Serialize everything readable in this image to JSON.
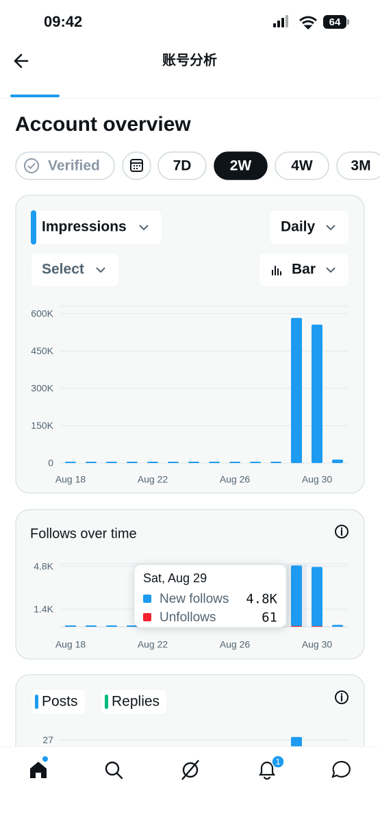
{
  "status_bar": {
    "time": "09:42",
    "battery": "64"
  },
  "header": {
    "title": "账号分析"
  },
  "section_title": "Account overview",
  "filters": {
    "verified": "Verified",
    "ranges": [
      "7D",
      "2W",
      "4W",
      "3M"
    ],
    "selected": "2W"
  },
  "controls": {
    "metric": "Impressions",
    "interval": "Daily",
    "compare": "Select",
    "chart_style": "Bar"
  },
  "chart_data": [
    {
      "type": "bar",
      "color": "#1d9bf0",
      "categories": [
        "Aug 18",
        null,
        null,
        null,
        "Aug 22",
        null,
        null,
        null,
        "Aug 26",
        null,
        null,
        null,
        "Aug 30",
        null
      ],
      "values": [
        0,
        0,
        0,
        0,
        0,
        0,
        0,
        0,
        0,
        0,
        0,
        583000,
        556000,
        14000
      ],
      "ylim": [
        0,
        630000
      ],
      "yticks": [
        0,
        {
          "value": 150000,
          "label": "150K"
        },
        {
          "value": 300000,
          "label": "300K"
        },
        {
          "value": 450000,
          "label": "450K"
        },
        {
          "value": 600000,
          "label": "600K"
        }
      ],
      "grid": true
    },
    {
      "type": "bar",
      "title": "Follows over time",
      "tooltip": "Sat, Aug 29",
      "categories": [
        "Aug 18",
        null,
        null,
        null,
        "Aug 22",
        null,
        null,
        null,
        "Aug 26",
        null,
        null,
        null,
        "Aug 30",
        null
      ],
      "series": [
        {
          "name": "New follows",
          "color": "#1d9bf0",
          "values": [
            0,
            0,
            0,
            0,
            0,
            0,
            0,
            0,
            0,
            0,
            0,
            4800,
            4700,
            150
          ],
          "value_labels": [
            null,
            null,
            null,
            null,
            null,
            null,
            null,
            null,
            null,
            null,
            null,
            "4.8K",
            null,
            null
          ]
        },
        {
          "name": "Unfollows",
          "color": "#f4212e",
          "values": [
            0,
            0,
            0,
            0,
            0,
            0,
            0,
            0,
            0,
            0,
            0,
            61,
            50,
            0
          ]
        }
      ],
      "ylim": [
        0,
        5000
      ],
      "yticks": [
        {
          "value": 1400,
          "label": "1.4K"
        },
        {
          "value": 4800,
          "label": "4.8K"
        }
      ],
      "grid": true
    },
    {
      "type": "bar",
      "series": [
        {
          "name": "Posts",
          "color": "#1d9bf0",
          "values": [
            null,
            null,
            null,
            null,
            null,
            null,
            null,
            null,
            null,
            null,
            null,
            28,
            null,
            null
          ]
        },
        {
          "name": "Replies",
          "color": "#00ba7c",
          "values": [
            null,
            null,
            null,
            null,
            null,
            null,
            null,
            null,
            null,
            null,
            null,
            null,
            null,
            null
          ]
        }
      ],
      "ylim": [
        0,
        30
      ],
      "yticks": [
        27
      ],
      "grid": true
    }
  ],
  "nav": {
    "notification_count": "1"
  }
}
